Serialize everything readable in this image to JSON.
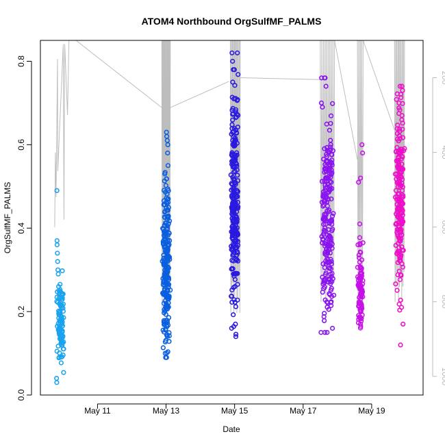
{
  "chart_data": {
    "type": "scatter",
    "title": "ATOM4 Northbound OrgSulfMF_PALMS",
    "xlabel": "Date",
    "ylabel": "OrgSulfMF_PALMS",
    "x_type": "date",
    "xlim": [
      "2018-05-09T08:00",
      "2018-05-20T12:00"
    ],
    "ylim": [
      0,
      0.85
    ],
    "x_ticks": [
      {
        "value": "2018-05-11",
        "label": "May 11"
      },
      {
        "value": "2018-05-13",
        "label": "May 13"
      },
      {
        "value": "2018-05-15",
        "label": "May 15"
      },
      {
        "value": "2018-05-17",
        "label": "May 17"
      },
      {
        "value": "2018-05-19",
        "label": "May 19"
      }
    ],
    "y_ticks": [
      0.0,
      0.2,
      0.4,
      0.6,
      0.8
    ],
    "y_tick_labels": [
      "0.0",
      "0.2",
      "0.4",
      "0.6",
      "0.8"
    ],
    "secondary_y": {
      "reversed": true,
      "lim": [
        100,
        1050
      ],
      "ticks": [
        200,
        400,
        600,
        800,
        1000
      ],
      "tick_labels": [
        "200",
        "400",
        "600",
        "800",
        "1000"
      ],
      "color": "#bbbbbb"
    },
    "grid": false,
    "legend": "none",
    "flights": [
      {
        "start": "2018-05-09T19:00",
        "end": "2018-05-10T01:00",
        "color": "#1aa3ee",
        "ymin": 0.03,
        "ymax": 0.49,
        "center": 0.17,
        "spread": 0.05,
        "n": 110,
        "outliers": [
          [
            0.09,
            0.49
          ],
          [
            0.11,
            0.37
          ],
          [
            0.12,
            0.36
          ],
          [
            0.15,
            0.34
          ],
          [
            0.18,
            0.32
          ],
          [
            0.21,
            0.3
          ],
          [
            0.25,
            0.29
          ],
          [
            0.29,
            0.26
          ],
          [
            0.35,
            0.25
          ],
          [
            0.05,
            0.04
          ],
          [
            0.08,
            0.03
          ]
        ]
      },
      {
        "start": "2018-05-12T21:00",
        "end": "2018-05-13T03:00",
        "color": "#0a5fe0",
        "ymin": 0.09,
        "ymax": 0.64,
        "center": 0.31,
        "spread": 0.09,
        "n": 220,
        "outliers": [
          [
            0.55,
            0.63
          ],
          [
            0.58,
            0.62
          ],
          [
            0.64,
            0.61
          ],
          [
            0.7,
            0.6
          ],
          [
            0.68,
            0.58
          ],
          [
            0.73,
            0.55
          ],
          [
            0.35,
            0.53
          ],
          [
            0.78,
            0.49
          ],
          [
            0.4,
            0.1
          ],
          [
            0.45,
            0.09
          ]
        ]
      },
      {
        "start": "2018-05-14T21:00",
        "end": "2018-05-15T03:00",
        "color": "#2a1ae0",
        "ymin": 0.14,
        "ymax": 0.82,
        "center": 0.47,
        "spread": 0.13,
        "n": 260,
        "outliers": [
          [
            0.2,
            0.82
          ],
          [
            0.26,
            0.8
          ],
          [
            0.34,
            0.78
          ],
          [
            0.28,
            0.75
          ],
          [
            0.42,
            0.71
          ],
          [
            0.15,
            0.16
          ],
          [
            0.65,
            0.14
          ],
          [
            0.6,
            0.17
          ]
        ]
      },
      {
        "start": "2018-05-17T12:00",
        "end": "2018-05-17T22:00",
        "color": "#8a14f0",
        "ymin": 0.15,
        "ymax": 0.76,
        "center": 0.42,
        "spread": 0.13,
        "n": 220,
        "outliers": [
          [
            0.3,
            0.76
          ],
          [
            0.4,
            0.74
          ],
          [
            0.08,
            0.7
          ],
          [
            0.15,
            0.69
          ],
          [
            0.05,
            0.15
          ],
          [
            0.85,
            0.16
          ]
        ]
      },
      {
        "start": "2018-05-18T14:00",
        "end": "2018-05-18T18:00",
        "color": "#c610e8",
        "ymin": 0.13,
        "ymax": 0.61,
        "center": 0.25,
        "spread": 0.06,
        "n": 90,
        "outliers": [
          [
            0.8,
            0.6
          ],
          [
            0.9,
            0.58
          ],
          [
            0.55,
            0.52
          ],
          [
            0.2,
            0.51
          ],
          [
            0.4,
            0.41
          ],
          [
            0.1,
            0.36
          ]
        ]
      },
      {
        "start": "2018-05-19T16:00",
        "end": "2018-05-19T23:00",
        "color": "#ee0fc9",
        "ymin": 0.12,
        "ymax": 0.74,
        "center": 0.47,
        "spread": 0.1,
        "n": 200,
        "outliers": [
          [
            0.55,
            0.74
          ],
          [
            0.8,
            0.73
          ],
          [
            0.45,
            0.7
          ],
          [
            0.75,
            0.67
          ],
          [
            0.6,
            0.12
          ],
          [
            0.85,
            0.17
          ],
          [
            0.7,
            0.21
          ]
        ]
      }
    ],
    "altitude_trace": {
      "axis": "secondary",
      "points": [
        [
          "2018-05-09T18:00",
          600
        ],
        [
          "2018-05-09T18:30",
          400
        ],
        [
          "2018-05-09T19:00",
          520
        ],
        [
          "2018-05-09T20:00",
          150
        ],
        [
          "2018-05-09T20:10",
          450
        ],
        [
          "2018-05-10T00:00",
          110
        ],
        [
          "2018-05-10T00:30",
          580
        ],
        [
          "2018-05-10T01:00",
          110
        ],
        [
          "2018-05-10T02:00",
          200
        ],
        [
          "2018-05-10T03:00",
          300
        ],
        [
          "2018-05-10T04:00",
          100
        ],
        [
          "2018-05-10T09:00",
          100
        ],
        [
          "2018-05-12T21:00",
          280
        ]
      ],
      "dive_flights": [
        {
          "start": "2018-05-12T21:00",
          "end": "2018-05-13T03:00",
          "top": 100,
          "bottom": 820,
          "n": 11
        },
        {
          "start": "2018-05-14T21:00",
          "end": "2018-05-15T04:00",
          "top": 100,
          "bottom": 830,
          "n": 10
        },
        {
          "start": "2018-05-17T12:00",
          "end": "2018-05-17T22:00",
          "top": 100,
          "bottom": 800,
          "n": 9
        },
        {
          "start": "2018-05-18T14:00",
          "end": "2018-05-18T18:00",
          "top": 100,
          "bottom": 820,
          "n": 4
        },
        {
          "start": "2018-05-19T16:00",
          "end": "2018-05-19T23:00",
          "top": 100,
          "bottom": 800,
          "n": 9
        }
      ],
      "connectors": [
        [
          [
            "2018-05-13T03:00",
            280
          ],
          [
            "2018-05-14T20:00",
            210
          ]
        ],
        [
          [
            "2018-05-15T04:00",
            200
          ],
          [
            "2018-05-17T12:00",
            205
          ]
        ],
        [
          [
            "2018-05-17T22:00",
            100
          ],
          [
            "2018-05-18T14:00",
            420
          ]
        ],
        [
          [
            "2018-05-18T18:00",
            100
          ],
          [
            "2018-05-19T16:00",
            340
          ]
        ]
      ]
    }
  }
}
